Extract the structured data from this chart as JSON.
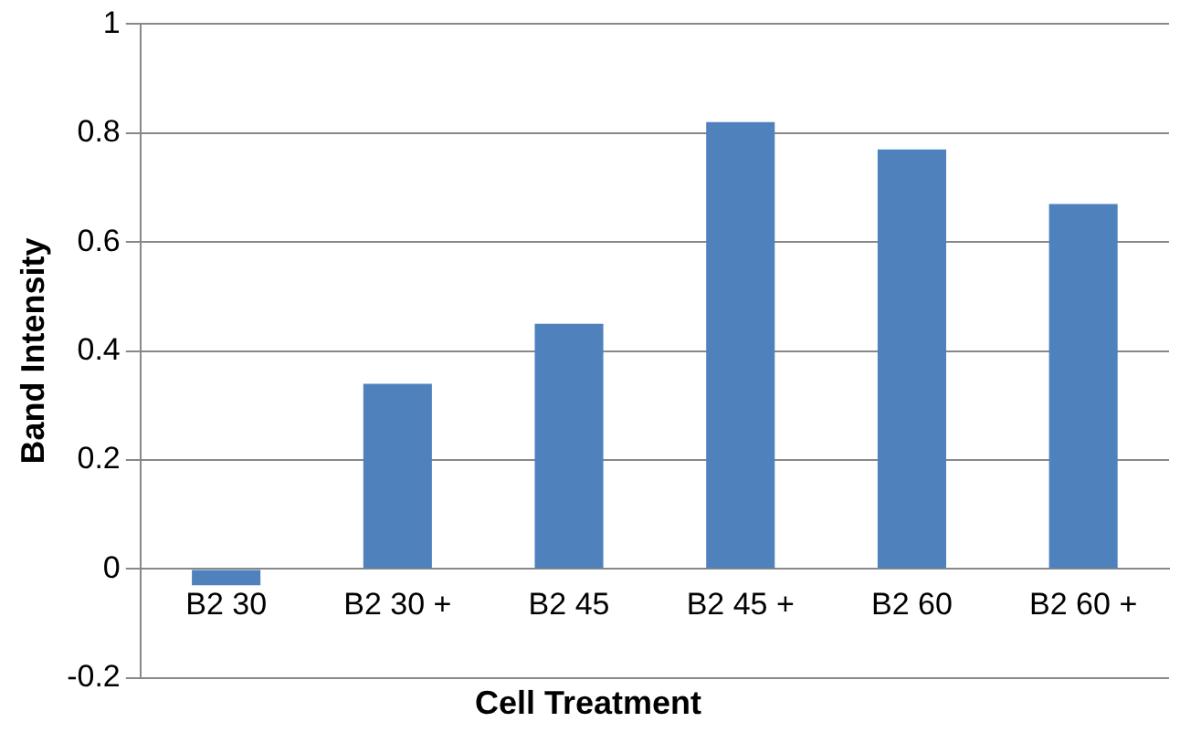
{
  "chart_data": {
    "type": "bar",
    "xlabel": "Cell Treatment",
    "ylabel": "Band Intensity",
    "categories": [
      "B2 30",
      "B2 30 +",
      "B2 45",
      "B2 45 +",
      "B2 60",
      "B2 60 +"
    ],
    "values": [
      -0.03,
      0.34,
      0.45,
      0.82,
      0.77,
      0.67
    ],
    "color": "#4f81bd",
    "ylim": [
      -0.2,
      1
    ],
    "yticks": [
      -0.2,
      0,
      0.2,
      0.4,
      0.6,
      0.8,
      1
    ],
    "grid": "y",
    "legend": false
  }
}
